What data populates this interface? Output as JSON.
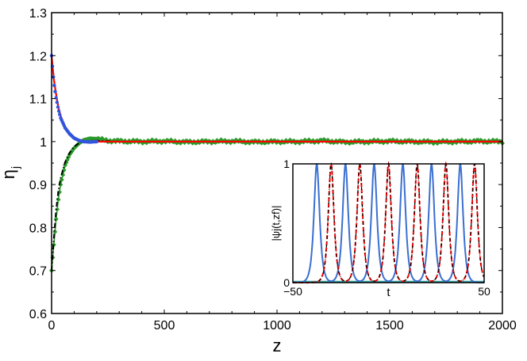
{
  "chart_data": [
    {
      "type": "line",
      "xlabel": "z",
      "ylabel": "η",
      "ylabel_sub": "j",
      "xlim": [
        0,
        2000
      ],
      "ylim": [
        0.6,
        1.3
      ],
      "x_ticks": [
        0,
        500,
        1000,
        1500,
        2000
      ],
      "y_ticks": [
        0.6,
        0.7,
        0.8,
        0.9,
        1,
        1.1,
        1.2,
        1.3
      ],
      "x_tick_labels": [
        "0",
        "500",
        "1000",
        "1500",
        "2000"
      ],
      "y_tick_labels": [
        "0.6",
        "0.7",
        "0.8",
        "0.9",
        "1",
        "1.1",
        "1.2",
        "1.3"
      ],
      "grid": false,
      "series": [
        {
          "color": "#ff0000",
          "style": "solid",
          "x": [
            0,
            10,
            20,
            30,
            40,
            60,
            80,
            100,
            120,
            140,
            170,
            200,
            2000
          ],
          "y": [
            1.2,
            1.145,
            1.11,
            1.08,
            1.06,
            1.035,
            1.02,
            1.01,
            1.005,
            1.002,
            1.0,
            1.0,
            1.0
          ]
        },
        {
          "color": "#3355dd",
          "style": "dots",
          "x": [
            0,
            10,
            20,
            30,
            40,
            60,
            80,
            100,
            120,
            140,
            170,
            200
          ],
          "y": [
            1.2,
            1.138,
            1.102,
            1.075,
            1.055,
            1.032,
            1.018,
            1.008,
            1.003,
            1.0,
            0.999,
            1.0
          ]
        },
        {
          "color": "#000000",
          "style": "dash-dot",
          "x": [
            0,
            10,
            20,
            30,
            40,
            60,
            80,
            100,
            120,
            140,
            170,
            200,
            300
          ],
          "y": [
            0.7,
            0.775,
            0.84,
            0.885,
            0.915,
            0.952,
            0.974,
            0.988,
            0.996,
            1.0,
            1.002,
            1.002,
            1.0
          ]
        },
        {
          "color": "#2a9a2a",
          "style": "diamonds",
          "x": [
            0,
            10,
            20,
            30,
            40,
            60,
            80,
            100,
            120,
            140,
            170,
            200,
            250,
            300,
            400,
            500,
            600,
            700,
            800,
            900,
            1000,
            1100,
            1200,
            1300,
            1400,
            1500,
            1600,
            1700,
            1800,
            1900,
            2000
          ],
          "y": [
            0.7,
            0.76,
            0.82,
            0.865,
            0.9,
            0.945,
            0.97,
            0.985,
            0.995,
            1.003,
            1.007,
            1.006,
            1.002,
            1.001,
            1.0,
            1.001,
            0.999,
            1.0,
            1.001,
            0.999,
            1.0,
            1.0,
            1.002,
            0.999,
            1.0,
            1.001,
            1.0,
            0.999,
            1.0,
            1.001,
            1.0
          ]
        }
      ]
    },
    {
      "type": "line",
      "inset": true,
      "xlabel": "t",
      "ylabel": "|ψj(t,zf)|",
      "xlim": [
        -50,
        50
      ],
      "ylim": [
        0,
        1
      ],
      "x_tick_labels": [
        "−50",
        "50"
      ],
      "y_tick_labels": [
        "0",
        "1"
      ],
      "series": [
        {
          "color": "#3a6fd0",
          "style": "solid",
          "peak_positions": [
            -37.5,
            -22.5,
            -7.5,
            7.5,
            22.5,
            37.5
          ],
          "peak_height": 1
        },
        {
          "color": "#ff0000",
          "style": "dashed",
          "peak_positions": [
            -30,
            -15,
            0,
            15,
            30,
            45
          ],
          "peak_height": 1
        },
        {
          "color": "#000000",
          "style": "dash-dot",
          "peak_positions": [
            -30,
            -15,
            0,
            15,
            30,
            45
          ],
          "peak_height": 1
        },
        {
          "color": "#2a9a9a",
          "style": "solid",
          "baseline": 0
        }
      ]
    }
  ]
}
